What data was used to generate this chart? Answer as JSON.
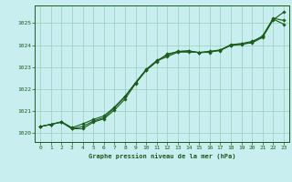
{
  "title": "Graphe pression niveau de la mer (hPa)",
  "bg_color": "#c8eef0",
  "grid_color": "#99ccbb",
  "line_color": "#1a5c1a",
  "xlim": [
    -0.5,
    23.5
  ],
  "ylim": [
    1019.6,
    1025.8
  ],
  "yticks": [
    1020,
    1021,
    1022,
    1023,
    1024,
    1025
  ],
  "xticks": [
    0,
    1,
    2,
    3,
    4,
    5,
    6,
    7,
    8,
    9,
    10,
    11,
    12,
    13,
    14,
    15,
    16,
    17,
    18,
    19,
    20,
    21,
    22,
    23
  ],
  "line1": [
    1020.3,
    1020.4,
    1020.5,
    1020.2,
    1020.2,
    1020.5,
    1020.65,
    1021.05,
    1021.55,
    1022.25,
    1022.85,
    1023.25,
    1023.6,
    1023.7,
    1023.75,
    1023.65,
    1023.7,
    1023.75,
    1024.0,
    1024.05,
    1024.1,
    1024.35,
    1025.15,
    1025.5
  ],
  "line2": [
    1020.3,
    1020.4,
    1020.5,
    1020.2,
    1020.3,
    1020.55,
    1020.7,
    1021.15,
    1021.65,
    1022.3,
    1022.9,
    1023.3,
    1023.55,
    1023.72,
    1023.72,
    1023.67,
    1023.67,
    1023.78,
    1024.02,
    1024.07,
    1024.17,
    1024.38,
    1025.18,
    1024.95
  ],
  "line3": [
    1020.3,
    1020.4,
    1020.52,
    1020.25,
    1020.42,
    1020.62,
    1020.78,
    1021.18,
    1021.68,
    1022.28,
    1022.88,
    1023.28,
    1023.48,
    1023.68,
    1023.68,
    1023.67,
    1023.72,
    1023.78,
    1023.98,
    1024.03,
    1024.13,
    1024.42,
    1025.22,
    1025.12
  ]
}
